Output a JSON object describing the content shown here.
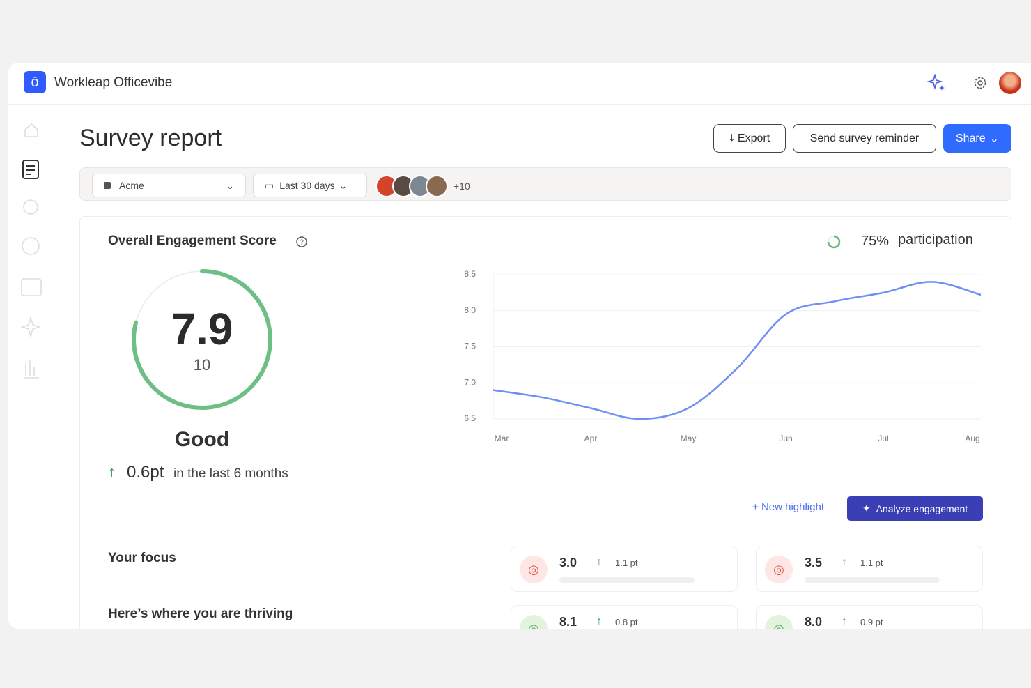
{
  "header": {
    "app_name": "Workleap Officevibe"
  },
  "page": {
    "title": "Survey report",
    "actions": [
      "Export",
      "Send survey reminder",
      "Share"
    ]
  },
  "filters": {
    "organization": "Acme",
    "period": "Last 30 days",
    "more_members": "+10"
  },
  "engagement": {
    "title": "Overall Engagement Score",
    "participation": {
      "value": 75,
      "label": "75%"
    },
    "participation_text": "participation",
    "score": 7.9,
    "max": 10,
    "rating": "Good",
    "change": "0.6pt",
    "change_period": "in the last 6 months",
    "actions": [
      "New highlight",
      "Analyze engagement"
    ]
  },
  "chart_data": {
    "type": "line",
    "categories": [
      "Mar",
      null,
      "Apr",
      null,
      "May",
      null,
      "Jun",
      null,
      "Jul",
      null,
      "Aug"
    ],
    "values": [
      6.9,
      6.8,
      6.65,
      6.5,
      6.65,
      7.2,
      7.95,
      8.13,
      8.25,
      8.4,
      8.22
    ],
    "color": "#6f8ff5",
    "ylim": [
      6.5,
      8.5
    ],
    "yticks": [
      6.5,
      {
        "value": 7,
        "label": "7.0"
      },
      7.5,
      {
        "value": 8,
        "label": "8.0"
      },
      8.5
    ],
    "grid": true
  },
  "focus": {
    "title": "Your focus",
    "items": [
      {
        "score": "3.0",
        "change": "1.1 pt"
      },
      {
        "score": "3.5",
        "change": "1.1 pt"
      }
    ]
  },
  "thriving": {
    "title": "Here’s where you are thriving",
    "items": [
      {
        "score": "8.1",
        "change": "0.8 pt"
      },
      {
        "score": "8.0",
        "change": "0.9 pt"
      }
    ]
  }
}
